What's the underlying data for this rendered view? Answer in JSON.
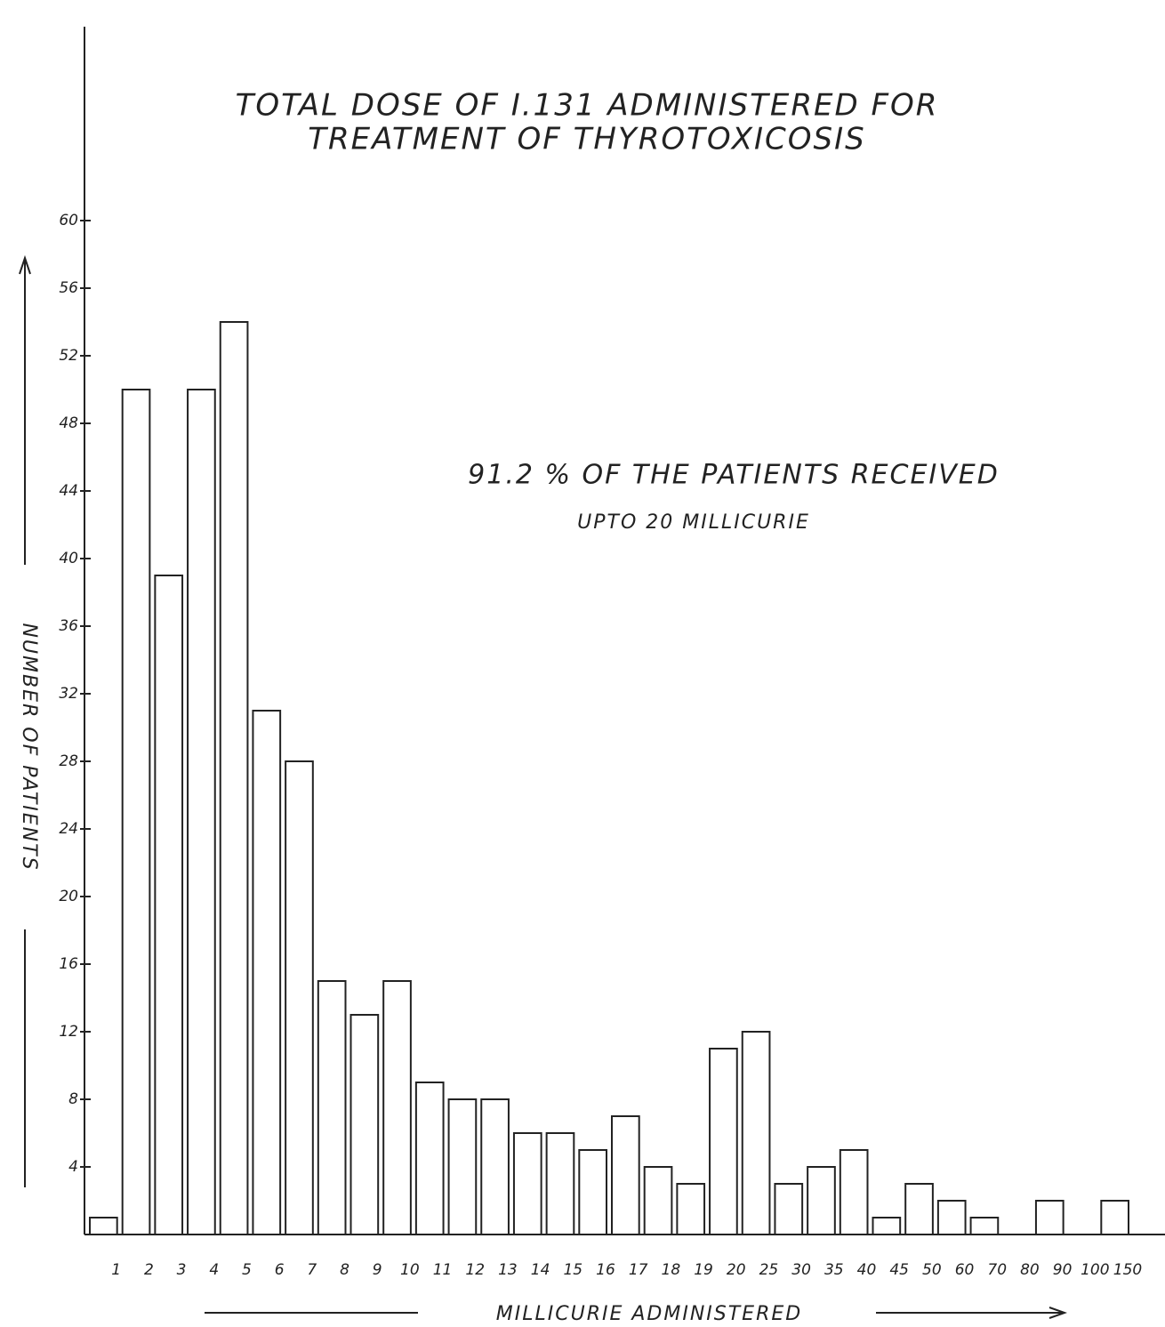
{
  "chart_data": {
    "type": "bar",
    "title": [
      "TOTAL DOSE OF I.131 ADMINISTERED FOR",
      "TREATMENT OF THYROTOXICOSIS"
    ],
    "annotation": [
      "91.2 % OF THE PATIENTS RECEIVED",
      "UPTO 20 MILLICURIE"
    ],
    "x_label": "MILLICURIE ADMINISTERED",
    "y_label": "NUMBER OF PATIENTS",
    "categories": [
      "1",
      "2",
      "3",
      "4",
      "5",
      "6",
      "7",
      "8",
      "9",
      "10",
      "11",
      "12",
      "13",
      "14",
      "15",
      "16",
      "17",
      "18",
      "19",
      "20",
      "25",
      "30",
      "35",
      "40",
      "45",
      "50",
      "60",
      "70",
      "80",
      "90",
      "100",
      "150"
    ],
    "values": [
      1,
      50,
      39,
      50,
      54,
      31,
      28,
      15,
      13,
      15,
      9,
      8,
      8,
      6,
      6,
      5,
      7,
      4,
      3,
      11,
      12,
      3,
      4,
      5,
      1,
      3,
      2,
      1,
      0,
      2,
      0,
      2
    ],
    "color": "#ffffff",
    "ylim": [
      0,
      60
    ],
    "yticks": [
      4,
      8,
      12,
      16,
      20,
      24,
      28,
      32,
      36,
      40,
      44,
      48,
      52,
      56,
      60
    ],
    "grid": false
  }
}
